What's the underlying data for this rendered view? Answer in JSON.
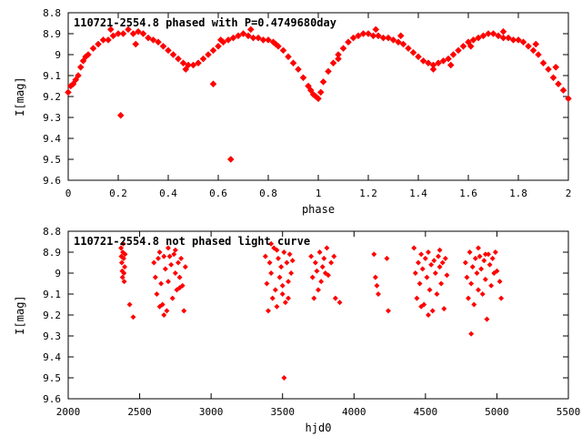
{
  "chart_data": [
    {
      "type": "scatter",
      "title": "110721-2554.8 phased with P=0.4749680day",
      "xlabel": "phase",
      "ylabel": "I[mag]",
      "xlim": [
        0,
        2
      ],
      "ylim": [
        8.8,
        9.6
      ],
      "y_inverted": true,
      "x_ticks": [
        "0",
        "0.2",
        "0.4",
        "0.6",
        "0.8",
        "1",
        "1.2",
        "1.4",
        "1.6",
        "1.8",
        "2"
      ],
      "y_ticks": [
        "8.8",
        "8.9",
        "9",
        "9.1",
        "9.2",
        "9.3",
        "9.4",
        "9.5",
        "9.6"
      ],
      "series": [
        {
          "color": "#ff0000",
          "marker": "diamond",
          "points": [
            [
              0.0,
              9.18
            ],
            [
              0.01,
              9.15
            ],
            [
              0.02,
              9.14
            ],
            [
              0.03,
              9.12
            ],
            [
              0.04,
              9.1
            ],
            [
              0.05,
              9.06
            ],
            [
              0.06,
              9.03
            ],
            [
              0.07,
              9.01
            ],
            [
              0.08,
              9.0
            ],
            [
              0.1,
              8.97
            ],
            [
              0.12,
              8.95
            ],
            [
              0.14,
              8.93
            ],
            [
              0.16,
              8.93
            ],
            [
              0.18,
              8.91
            ],
            [
              0.2,
              8.9
            ],
            [
              0.22,
              8.9
            ],
            [
              0.24,
              8.88
            ],
            [
              0.26,
              8.9
            ],
            [
              0.28,
              8.89
            ],
            [
              0.3,
              8.9
            ],
            [
              0.32,
              8.92
            ],
            [
              0.34,
              8.93
            ],
            [
              0.36,
              8.94
            ],
            [
              0.38,
              8.96
            ],
            [
              0.4,
              8.98
            ],
            [
              0.42,
              9.0
            ],
            [
              0.44,
              9.02
            ],
            [
              0.46,
              9.04
            ],
            [
              0.48,
              9.05
            ],
            [
              0.5,
              9.05
            ],
            [
              0.52,
              9.04
            ],
            [
              0.54,
              9.02
            ],
            [
              0.56,
              9.0
            ],
            [
              0.58,
              8.98
            ],
            [
              0.6,
              8.96
            ],
            [
              0.62,
              8.94
            ],
            [
              0.64,
              8.93
            ],
            [
              0.66,
              8.92
            ],
            [
              0.68,
              8.91
            ],
            [
              0.7,
              8.9
            ],
            [
              0.72,
              8.91
            ],
            [
              0.74,
              8.92
            ],
            [
              0.76,
              8.92
            ],
            [
              0.78,
              8.93
            ],
            [
              0.8,
              8.93
            ],
            [
              0.82,
              8.94
            ],
            [
              0.84,
              8.96
            ],
            [
              0.86,
              8.98
            ],
            [
              0.88,
              9.01
            ],
            [
              0.9,
              9.04
            ],
            [
              0.92,
              9.07
            ],
            [
              0.94,
              9.11
            ],
            [
              0.96,
              9.15
            ],
            [
              0.97,
              9.17
            ],
            [
              0.98,
              9.19
            ],
            [
              0.99,
              9.2
            ],
            [
              1.0,
              9.21
            ],
            [
              1.01,
              9.18
            ],
            [
              1.02,
              9.13
            ],
            [
              1.04,
              9.08
            ],
            [
              1.06,
              9.04
            ],
            [
              1.08,
              9.0
            ],
            [
              1.1,
              8.97
            ],
            [
              1.12,
              8.94
            ],
            [
              1.14,
              8.92
            ],
            [
              1.16,
              8.91
            ],
            [
              1.18,
              8.9
            ],
            [
              1.2,
              8.9
            ],
            [
              1.22,
              8.91
            ],
            [
              1.24,
              8.91
            ],
            [
              1.26,
              8.92
            ],
            [
              1.28,
              8.92
            ],
            [
              1.3,
              8.93
            ],
            [
              1.32,
              8.94
            ],
            [
              1.34,
              8.95
            ],
            [
              1.36,
              8.97
            ],
            [
              1.38,
              8.99
            ],
            [
              1.4,
              9.01
            ],
            [
              1.42,
              9.03
            ],
            [
              1.44,
              9.04
            ],
            [
              1.46,
              9.05
            ],
            [
              1.48,
              9.04
            ],
            [
              1.5,
              9.03
            ],
            [
              1.52,
              9.02
            ],
            [
              1.54,
              9.0
            ],
            [
              1.56,
              8.98
            ],
            [
              1.58,
              8.96
            ],
            [
              1.6,
              8.94
            ],
            [
              1.62,
              8.93
            ],
            [
              1.64,
              8.92
            ],
            [
              1.66,
              8.91
            ],
            [
              1.68,
              8.9
            ],
            [
              1.7,
              8.9
            ],
            [
              1.72,
              8.91
            ],
            [
              1.74,
              8.92
            ],
            [
              1.76,
              8.92
            ],
            [
              1.78,
              8.93
            ],
            [
              1.8,
              8.93
            ],
            [
              1.82,
              8.94
            ],
            [
              1.84,
              8.96
            ],
            [
              1.86,
              8.98
            ],
            [
              1.88,
              9.0
            ],
            [
              1.9,
              9.04
            ],
            [
              1.92,
              9.07
            ],
            [
              1.94,
              9.11
            ],
            [
              1.96,
              9.14
            ],
            [
              1.98,
              9.17
            ],
            [
              2.0,
              9.21
            ],
            [
              0.21,
              9.29
            ],
            [
              0.58,
              9.14
            ],
            [
              0.65,
              9.5
            ],
            [
              0.17,
              8.88
            ],
            [
              0.27,
              8.95
            ],
            [
              0.47,
              9.07
            ],
            [
              0.61,
              8.93
            ],
            [
              0.73,
              8.88
            ],
            [
              0.83,
              8.95
            ],
            [
              1.23,
              8.88
            ],
            [
              1.46,
              9.07
            ],
            [
              1.53,
              9.05
            ],
            [
              1.61,
              8.96
            ],
            [
              1.74,
              8.89
            ],
            [
              1.87,
              8.95
            ],
            [
              1.95,
              9.06
            ],
            [
              1.33,
              8.91
            ],
            [
              1.08,
              9.02
            ]
          ]
        }
      ]
    },
    {
      "type": "scatter",
      "title": "110721-2554.8 not phased light curve",
      "xlabel": "hjd0",
      "ylabel": "I[mag]",
      "xlim": [
        2000,
        5500
      ],
      "ylim": [
        8.8,
        9.6
      ],
      "y_inverted": true,
      "x_ticks": [
        "2000",
        "2500",
        "3000",
        "3500",
        "4000",
        "4500",
        "5000",
        "5500"
      ],
      "y_ticks": [
        "8.8",
        "8.9",
        "9",
        "9.1",
        "9.2",
        "9.3",
        "9.4",
        "9.5",
        "9.6"
      ],
      "series": [
        {
          "color": "#ff0000",
          "marker": "diamond",
          "points": [
            [
              2370,
              8.88
            ],
            [
              2372,
              8.92
            ],
            [
              2375,
              8.95
            ],
            [
              2378,
              8.99
            ],
            [
              2380,
              9.02
            ],
            [
              2382,
              8.9
            ],
            [
              2385,
              8.86
            ],
            [
              2388,
              8.93
            ],
            [
              2390,
              9.0
            ],
            [
              2392,
              9.04
            ],
            [
              2395,
              8.97
            ],
            [
              2398,
              8.91
            ],
            [
              2430,
              9.15
            ],
            [
              2455,
              9.21
            ],
            [
              2600,
              8.95
            ],
            [
              2610,
              9.02
            ],
            [
              2620,
              9.1
            ],
            [
              2630,
              8.93
            ],
            [
              2640,
              8.9
            ],
            [
              2650,
              9.05
            ],
            [
              2660,
              9.15
            ],
            [
              2670,
              8.92
            ],
            [
              2680,
              8.98
            ],
            [
              2690,
              9.18
            ],
            [
              2700,
              9.04
            ],
            [
              2710,
              8.92
            ],
            [
              2720,
              8.96
            ],
            [
              2730,
              9.12
            ],
            [
              2740,
              8.91
            ],
            [
              2750,
              9.0
            ],
            [
              2760,
              9.08
            ],
            [
              2770,
              8.95
            ],
            [
              2780,
              9.02
            ],
            [
              2790,
              8.93
            ],
            [
              2800,
              9.06
            ],
            [
              2810,
              9.18
            ],
            [
              2820,
              8.97
            ],
            [
              2640,
              9.16
            ],
            [
              2670,
              9.2
            ],
            [
              2700,
              8.88
            ],
            [
              2750,
              8.89
            ],
            [
              2780,
              9.07
            ],
            [
              3380,
              8.92
            ],
            [
              3390,
              9.05
            ],
            [
              3400,
              9.18
            ],
            [
              3410,
              8.95
            ],
            [
              3420,
              9.0
            ],
            [
              3430,
              9.12
            ],
            [
              3440,
              8.88
            ],
            [
              3450,
              9.08
            ],
            [
              3460,
              9.16
            ],
            [
              3470,
              8.93
            ],
            [
              3480,
              9.02
            ],
            [
              3490,
              8.97
            ],
            [
              3500,
              9.1
            ],
            [
              3510,
              8.9
            ],
            [
              3520,
              9.14
            ],
            [
              3530,
              8.95
            ],
            [
              3540,
              9.04
            ],
            [
              3550,
              8.91
            ],
            [
              3560,
              9.0
            ],
            [
              3570,
              8.94
            ],
            [
              3420,
              8.86
            ],
            [
              3460,
              8.89
            ],
            [
              3500,
              9.06
            ],
            [
              3540,
              9.12
            ],
            [
              3511,
              9.5
            ],
            [
              3700,
              8.92
            ],
            [
              3710,
              9.02
            ],
            [
              3720,
              9.12
            ],
            [
              3730,
              8.95
            ],
            [
              3740,
              8.99
            ],
            [
              3750,
              9.08
            ],
            [
              3760,
              8.9
            ],
            [
              3770,
              9.04
            ],
            [
              3780,
              8.97
            ],
            [
              3790,
              8.93
            ],
            [
              3800,
              9.0
            ],
            [
              3810,
              8.88
            ],
            [
              3820,
              9.01
            ],
            [
              3840,
              8.95
            ],
            [
              3860,
              8.92
            ],
            [
              3870,
              9.12
            ],
            [
              3900,
              9.14
            ],
            [
              4140,
              8.91
            ],
            [
              4150,
              9.02
            ],
            [
              4160,
              9.06
            ],
            [
              4170,
              9.1
            ],
            [
              4230,
              8.93
            ],
            [
              4240,
              9.18
            ],
            [
              4420,
              8.88
            ],
            [
              4430,
              9.0
            ],
            [
              4440,
              9.12
            ],
            [
              4450,
              8.95
            ],
            [
              4460,
              9.05
            ],
            [
              4470,
              8.91
            ],
            [
              4480,
              8.98
            ],
            [
              4490,
              9.15
            ],
            [
              4500,
              8.93
            ],
            [
              4510,
              9.02
            ],
            [
              4520,
              8.9
            ],
            [
              4530,
              9.08
            ],
            [
              4540,
              8.96
            ],
            [
              4550,
              9.18
            ],
            [
              4560,
              8.94
            ],
            [
              4570,
              9.0
            ],
            [
              4580,
              9.1
            ],
            [
              4590,
              8.92
            ],
            [
              4600,
              8.97
            ],
            [
              4610,
              9.05
            ],
            [
              4620,
              8.95
            ],
            [
              4630,
              9.17
            ],
            [
              4640,
              8.93
            ],
            [
              4650,
              9.01
            ],
            [
              4470,
              9.16
            ],
            [
              4520,
              9.2
            ],
            [
              4600,
              8.89
            ],
            [
              4780,
              8.95
            ],
            [
              4790,
              9.02
            ],
            [
              4800,
              9.12
            ],
            [
              4810,
              8.9
            ],
            [
              4820,
              9.05
            ],
            [
              4830,
              8.97
            ],
            [
              4840,
              9.15
            ],
            [
              4850,
              8.93
            ],
            [
              4860,
              9.0
            ],
            [
              4870,
              9.08
            ],
            [
              4880,
              8.92
            ],
            [
              4890,
              8.98
            ],
            [
              4900,
              9.1
            ],
            [
              4910,
              8.94
            ],
            [
              4920,
              9.03
            ],
            [
              4930,
              9.22
            ],
            [
              4940,
              8.91
            ],
            [
              4950,
              8.96
            ],
            [
              4960,
              9.06
            ],
            [
              4970,
              8.93
            ],
            [
              4980,
              9.0
            ],
            [
              4990,
              8.9
            ],
            [
              5000,
              8.99
            ],
            [
              5020,
              9.04
            ],
            [
              5030,
              9.12
            ],
            [
              4820,
              9.29
            ],
            [
              4870,
              8.88
            ],
            [
              4920,
              8.91
            ]
          ]
        }
      ]
    }
  ]
}
